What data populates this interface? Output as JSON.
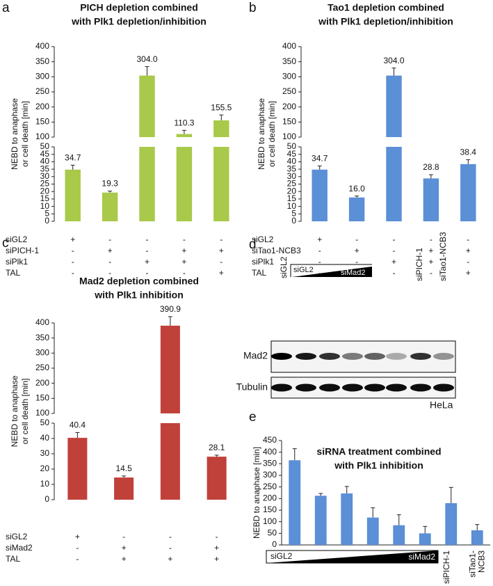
{
  "chart_data": [
    {
      "type": "bar",
      "panel_label": "a",
      "title": [
        "PICH depletion combined",
        "with Plk1 depletion/inhibition"
      ],
      "ylabel": [
        "NEBD to anaphase",
        "or cell death [min]"
      ],
      "color": "#a9c94a",
      "values": [
        34.7,
        19.3,
        304.0,
        110.3,
        155.5
      ],
      "value_labels": [
        "34.7",
        "19.3",
        "304.0",
        "110.3",
        "155.5"
      ],
      "errors": [
        3,
        1,
        30,
        12,
        18
      ],
      "ylim": [
        0,
        50
      ],
      "yticks": [
        0,
        5,
        10,
        15,
        20,
        25,
        30,
        35,
        40,
        45,
        50
      ],
      "ylim_upper": [
        100,
        400
      ],
      "yticks_upper": [
        100,
        150,
        200,
        250,
        300,
        350,
        400
      ],
      "rows": [
        {
          "label": "siGL2",
          "marks": [
            "+",
            "-",
            "-",
            "-",
            "-"
          ]
        },
        {
          "label": "siPICH-1",
          "marks": [
            "-",
            "+",
            "-",
            "+",
            "+"
          ]
        },
        {
          "label": "siPlk1",
          "marks": [
            "-",
            "-",
            "+",
            "+",
            "-"
          ]
        },
        {
          "label": "TAL",
          "marks": [
            "-",
            "-",
            "-",
            "-",
            "+"
          ]
        }
      ]
    },
    {
      "type": "bar",
      "panel_label": "b",
      "title": [
        "Tao1 depletion combined",
        "with Plk1 depletion/inhibition"
      ],
      "ylabel": [
        "NEBD to anaphase",
        "or cell death [min]"
      ],
      "color": "#5b8fd6",
      "values": [
        34.7,
        16.0,
        304.0,
        28.8,
        38.4
      ],
      "value_labels": [
        "34.7",
        "16.0",
        "304.0",
        "28.8",
        "38.4"
      ],
      "errors": [
        2.5,
        1,
        25,
        2.5,
        3
      ],
      "ylim": [
        0,
        50
      ],
      "yticks": [
        0,
        5,
        10,
        15,
        20,
        25,
        30,
        35,
        40,
        45,
        50
      ],
      "ylim_upper": [
        100,
        400
      ],
      "yticks_upper": [
        100,
        150,
        200,
        250,
        300,
        350,
        400
      ],
      "rows": [
        {
          "label": "siGL2",
          "marks": [
            "+",
            "-",
            "-",
            "-",
            "-"
          ]
        },
        {
          "label": "siTao1-NCB3",
          "marks": [
            "-",
            "+",
            "-",
            "+",
            "+"
          ]
        },
        {
          "label": "siPlk1",
          "marks": [
            "-",
            "-",
            "+",
            "+",
            "-"
          ]
        },
        {
          "label": "TAL",
          "marks": [
            "-",
            "-",
            "-",
            "-",
            "+"
          ]
        }
      ]
    },
    {
      "type": "bar",
      "panel_label": "c",
      "title": [
        "Mad2 depletion combined",
        "with Plk1 inhibition"
      ],
      "ylabel": [
        "NEBD to anaphase",
        "or cell death [min]"
      ],
      "color": "#c0413a",
      "values": [
        40.4,
        14.5,
        390.9,
        28.1
      ],
      "value_labels": [
        "40.4",
        "14.5",
        "390.9",
        "28.1"
      ],
      "errors": [
        3.5,
        1,
        30,
        1
      ],
      "ylim": [
        0,
        50
      ],
      "yticks": [
        0,
        10,
        20,
        30,
        40,
        50
      ],
      "ylim_upper": [
        100,
        400
      ],
      "yticks_upper": [
        100,
        150,
        200,
        250,
        300,
        350,
        400
      ],
      "rows": [
        {
          "label": "siGL2",
          "marks": [
            "+",
            "-",
            "-",
            "-"
          ]
        },
        {
          "label": "siMad2",
          "marks": [
            "-",
            "+",
            "-",
            "+"
          ]
        },
        {
          "label": "TAL",
          "marks": [
            "-",
            "+",
            "+",
            "+"
          ]
        }
      ]
    },
    {
      "type": "bar",
      "panel_label": "e",
      "title": [
        "siRNA treatment combined",
        "with Plk1 inhibition"
      ],
      "ylabel": [
        "NEBD to anaphase [min]"
      ],
      "color": "#5b8fd6",
      "categories": [
        null,
        null,
        null,
        null,
        null,
        null,
        [
          "siPICH-1"
        ],
        [
          "siTao1-",
          "NCB3"
        ]
      ],
      "values": [
        365,
        212,
        222,
        118,
        85,
        50,
        180,
        63
      ],
      "errors": [
        50,
        10,
        30,
        42,
        45,
        30,
        68,
        25
      ],
      "ylim": [
        0,
        450
      ],
      "yticks": [
        0,
        50,
        100,
        150,
        200,
        250,
        300,
        350,
        400,
        450
      ],
      "gradient_labels": [
        "siGL2",
        "siMad2"
      ]
    }
  ],
  "blot": {
    "panel_label": "d",
    "lane_labels": [
      "siGL2",
      "siPICH-1",
      "siTao1-NCB3"
    ],
    "gradient_labels": [
      "siGL2",
      "siMad2"
    ],
    "rows": [
      "Mad2",
      "Tubulin"
    ],
    "cell_line": "HeLa"
  }
}
